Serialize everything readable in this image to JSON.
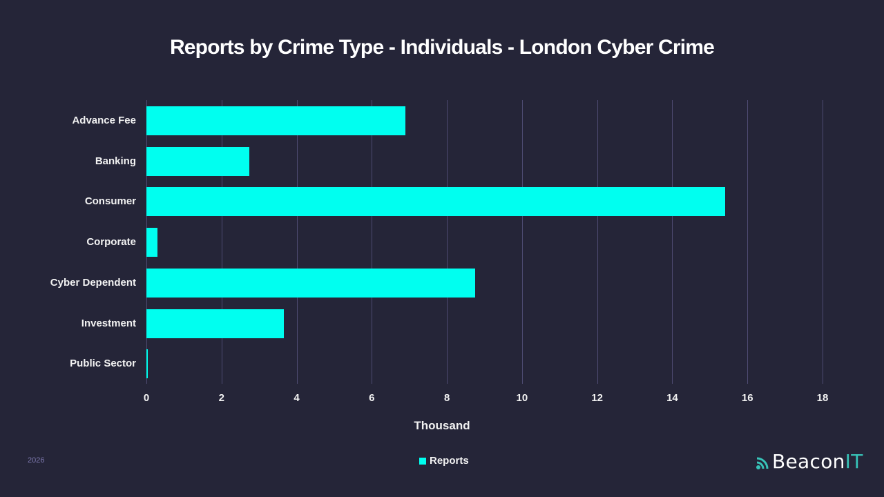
{
  "title": "Reports by Crime Type - Individuals - London Cyber Crime",
  "axis": {
    "x_title": "Thousand",
    "ticks": [
      "0",
      "2",
      "4",
      "6",
      "8",
      "10",
      "12",
      "14",
      "16",
      "18"
    ]
  },
  "legend": {
    "label": "Reports",
    "color": "#00fff0"
  },
  "footer": {
    "year": "2026",
    "brand_main": "Beacon",
    "brand_accent": "IT"
  },
  "colors": {
    "background": "#252538",
    "bar": "#00fff0",
    "grid": "#4e4b72",
    "brand_accent": "#37c3b8"
  },
  "chart_data": {
    "type": "bar",
    "orientation": "horizontal",
    "title": "Reports by Crime Type - Individuals - London Cyber Crime",
    "xlabel": "Thousand",
    "ylabel": "",
    "categories": [
      "Advance Fee",
      "Banking",
      "Consumer",
      "Corporate",
      "Cyber Dependent",
      "Investment",
      "Public Sector"
    ],
    "series": [
      {
        "name": "Reports",
        "values": [
          6.9,
          2.74,
          15.4,
          0.29,
          8.75,
          3.66,
          0.02
        ]
      }
    ],
    "xlim": [
      0,
      18
    ],
    "x_ticks": [
      0,
      2,
      4,
      6,
      8,
      10,
      12,
      14,
      16,
      18
    ],
    "grid": true,
    "legend_position": "bottom"
  }
}
